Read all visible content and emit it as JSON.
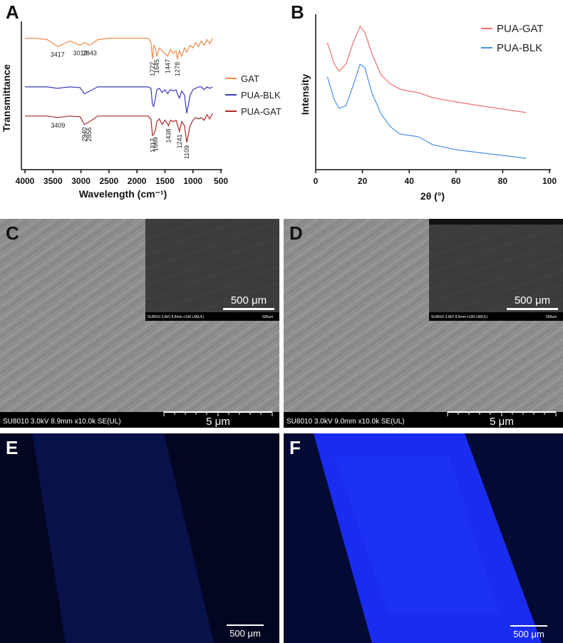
{
  "chart_data": [
    {
      "type": "line",
      "panel": "A",
      "xlabel": "Wavelength (cm⁻¹)",
      "ylabel": "Transmittance",
      "xlim": [
        4000,
        500
      ],
      "xticks": [
        4000,
        3500,
        3000,
        2500,
        2000,
        1500,
        1000,
        500
      ],
      "ylim": [
        0,
        100
      ],
      "legend": "right",
      "x": [
        4000,
        3800,
        3600,
        3417,
        3200,
        3013,
        2940,
        2843,
        2700,
        2500,
        2300,
        2100,
        2000,
        1900,
        1800,
        1750,
        1722,
        1700,
        1669,
        1645,
        1600,
        1550,
        1500,
        1447,
        1438,
        1400,
        1350,
        1300,
        1278,
        1241,
        1200,
        1150,
        1109,
        1050,
        1000,
        950,
        900,
        850,
        800,
        750,
        700,
        650
      ],
      "series": [
        {
          "name": "GAT",
          "color": "#f08a4b",
          "peaks": [
            3417,
            3013,
            2843,
            1722,
            1645,
            1447,
            1278
          ],
          "values": [
            93,
            93,
            92,
            87,
            91,
            88,
            90,
            88,
            92,
            93,
            93,
            93,
            93,
            93,
            93,
            90,
            78,
            88,
            86,
            80,
            86,
            84,
            82,
            80,
            82,
            85,
            82,
            84,
            78,
            84,
            80,
            86,
            83,
            88,
            86,
            90,
            87,
            91,
            88,
            92,
            89,
            93
          ]
        },
        {
          "name": "PUA-BLK",
          "color": "#3a3ab8",
          "values": [
            58,
            58,
            58,
            57,
            58,
            57.5,
            53,
            55,
            58,
            58,
            58,
            58,
            58,
            58,
            58,
            57,
            45,
            44,
            50,
            56,
            57,
            54,
            56,
            53,
            54,
            56,
            55,
            56,
            53,
            50,
            55,
            52,
            39,
            52,
            56,
            57,
            58,
            58,
            56,
            58,
            57,
            58
          ]
        },
        {
          "name": "PUA-GAT",
          "color": "#a82828",
          "peaks": [
            3409,
            2940,
            2856,
            1717,
            1669,
            1438,
            1241,
            1109
          ],
          "values": [
            37,
            37,
            37,
            36,
            37,
            36.5,
            31,
            33,
            37,
            37,
            37,
            37,
            37,
            37,
            37,
            35,
            23,
            24,
            27,
            33,
            35,
            31,
            34,
            31,
            30,
            34,
            33,
            34,
            31,
            26,
            33,
            30,
            18,
            30,
            34,
            36,
            35,
            36,
            34,
            38,
            35,
            39
          ]
        }
      ]
    },
    {
      "type": "line",
      "panel": "B",
      "xlabel": "2θ (°)",
      "ylabel": "Intensity",
      "xlim": [
        0,
        100
      ],
      "xticks": [
        0,
        20,
        40,
        60,
        80,
        100
      ],
      "ylim": [
        0,
        100
      ],
      "legend": "upper right",
      "x": [
        5,
        8,
        10,
        13,
        16,
        19,
        21,
        24,
        28,
        32,
        36,
        40,
        44,
        50,
        60,
        70,
        80,
        90
      ],
      "series": [
        {
          "name": "PUA-GAT",
          "color": "#f07070",
          "values": [
            85.4,
            70.7,
            65.9,
            70.7,
            85.4,
            96.6,
            92.7,
            78,
            63.4,
            57.1,
            53.7,
            52.2,
            51.2,
            47.8,
            44.9,
            42.4,
            40,
            37.6
          ]
        },
        {
          "name": "PUA-BLK",
          "color": "#4a90e2",
          "values": [
            62,
            46.3,
            40.5,
            42.4,
            56.1,
            70.7,
            68.3,
            51.2,
            36.6,
            27.8,
            22.9,
            22,
            21,
            15.6,
            12.2,
            10.2,
            8.3,
            6.3
          ]
        }
      ]
    }
  ],
  "panels": [
    {
      "label": "C",
      "info": "SU8010 3.0kV 8.9mm x10.0k SE(UL)",
      "scale": "5 μm",
      "inset": {
        "info": "SU8010 3.0kV 8.8mm x100 LM(UL)",
        "scale_small": "500um",
        "scale": "500 μm"
      }
    },
    {
      "label": "D",
      "info": "SU8010 3.0kV 9.0mm x10.0k SE(UL)",
      "scale": "5 μm",
      "inset": {
        "info": "SU8010 3.0kV 8.6mm x100 LM(UL)",
        "scale_small": "500um",
        "scale": "500 μm"
      }
    },
    {
      "label": "E",
      "scale": "500 μm"
    },
    {
      "label": "F",
      "scale": "500 μm"
    }
  ]
}
